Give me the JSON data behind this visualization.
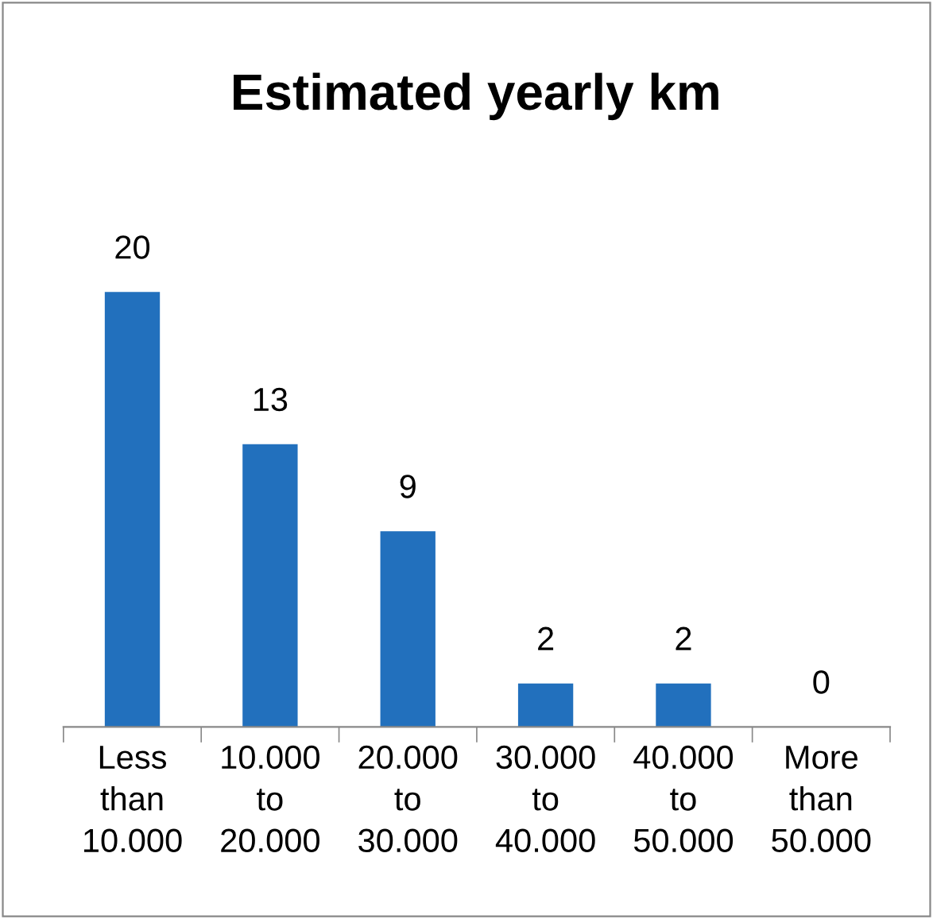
{
  "chart_data": {
    "type": "bar",
    "title": "Estimated yearly km",
    "categories": [
      "Less\nthan\n10.000",
      "10.000\nto\n20.000",
      "20.000\nto\n30.000",
      "30.000\nto\n40.000",
      "40.000\nto\n50.000",
      "More\nthan\n50.000"
    ],
    "values": [
      20,
      13,
      9,
      2,
      2,
      0
    ],
    "color": "#2270bd",
    "data_labels": true,
    "grid": false,
    "legend": false
  }
}
